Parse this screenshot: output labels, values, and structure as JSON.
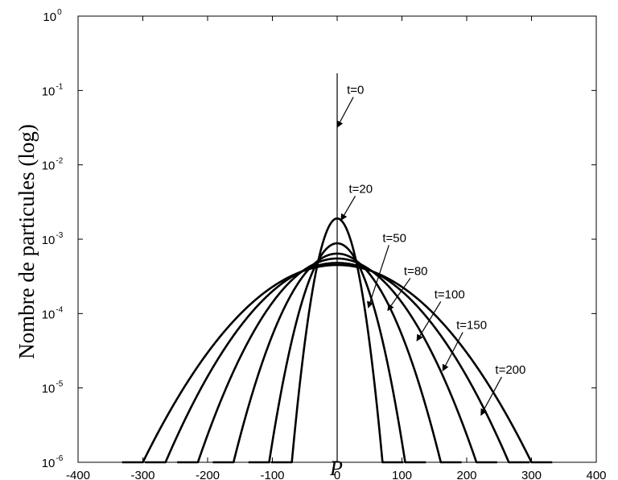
{
  "chart_data": {
    "type": "line",
    "title": "",
    "xlabel": "P",
    "ylabel": "Nombre de particules (log)",
    "xlim": [
      -400,
      400
    ],
    "ylim": [
      1e-06,
      1
    ],
    "yscale": "log",
    "xticks": [
      "-400",
      "-300",
      "-200",
      "-100",
      "0",
      "100",
      "200",
      "300",
      "400"
    ],
    "yticks": [
      {
        "base": "10",
        "exp": "-6"
      },
      {
        "base": "10",
        "exp": "-5"
      },
      {
        "base": "10",
        "exp": "-4"
      },
      {
        "base": "10",
        "exp": "-3"
      },
      {
        "base": "10",
        "exp": "-2"
      },
      {
        "base": "10",
        "exp": "-1"
      },
      {
        "base": "10",
        "exp": "0"
      }
    ],
    "grid": false,
    "legend": "none",
    "line_color": "#000000",
    "series": [
      {
        "name": "t=0",
        "peak": 0.17,
        "half_width": 0
      },
      {
        "name": "t=20",
        "peak": 0.0019,
        "half_width": 70
      },
      {
        "name": "t=50",
        "peak": 0.00088,
        "half_width": 105
      },
      {
        "name": "t=80",
        "peak": 0.00064,
        "half_width": 160
      },
      {
        "name": "t=100",
        "peak": 0.00055,
        "half_width": 215
      },
      {
        "name": "t=150",
        "peak": 0.00048,
        "half_width": 265
      },
      {
        "name": "t=200",
        "peak": 0.00045,
        "half_width": 300
      }
    ],
    "annotations": [
      {
        "text": "t=0",
        "x": 15,
        "y": 0.09,
        "arrow_to": [
          0,
          0.032
        ]
      },
      {
        "text": "t=20",
        "x": 18,
        "y": 0.0042,
        "arrow_to": [
          6,
          0.0018
        ]
      },
      {
        "text": "t=50",
        "x": 70,
        "y": 0.00092,
        "arrow_to": [
          48,
          0.00012
        ]
      },
      {
        "text": "t=80",
        "x": 103,
        "y": 0.00033,
        "arrow_to": [
          78,
          0.00011
        ]
      },
      {
        "text": "t=100",
        "x": 150,
        "y": 0.00016,
        "arrow_to": [
          123,
          4.3e-05
        ]
      },
      {
        "text": "t=150",
        "x": 184,
        "y": 6.2e-05,
        "arrow_to": [
          163,
          1.7e-05
        ]
      },
      {
        "text": "t=200",
        "x": 244,
        "y": 1.55e-05,
        "arrow_to": [
          222,
          4.3e-06
        ]
      }
    ]
  }
}
